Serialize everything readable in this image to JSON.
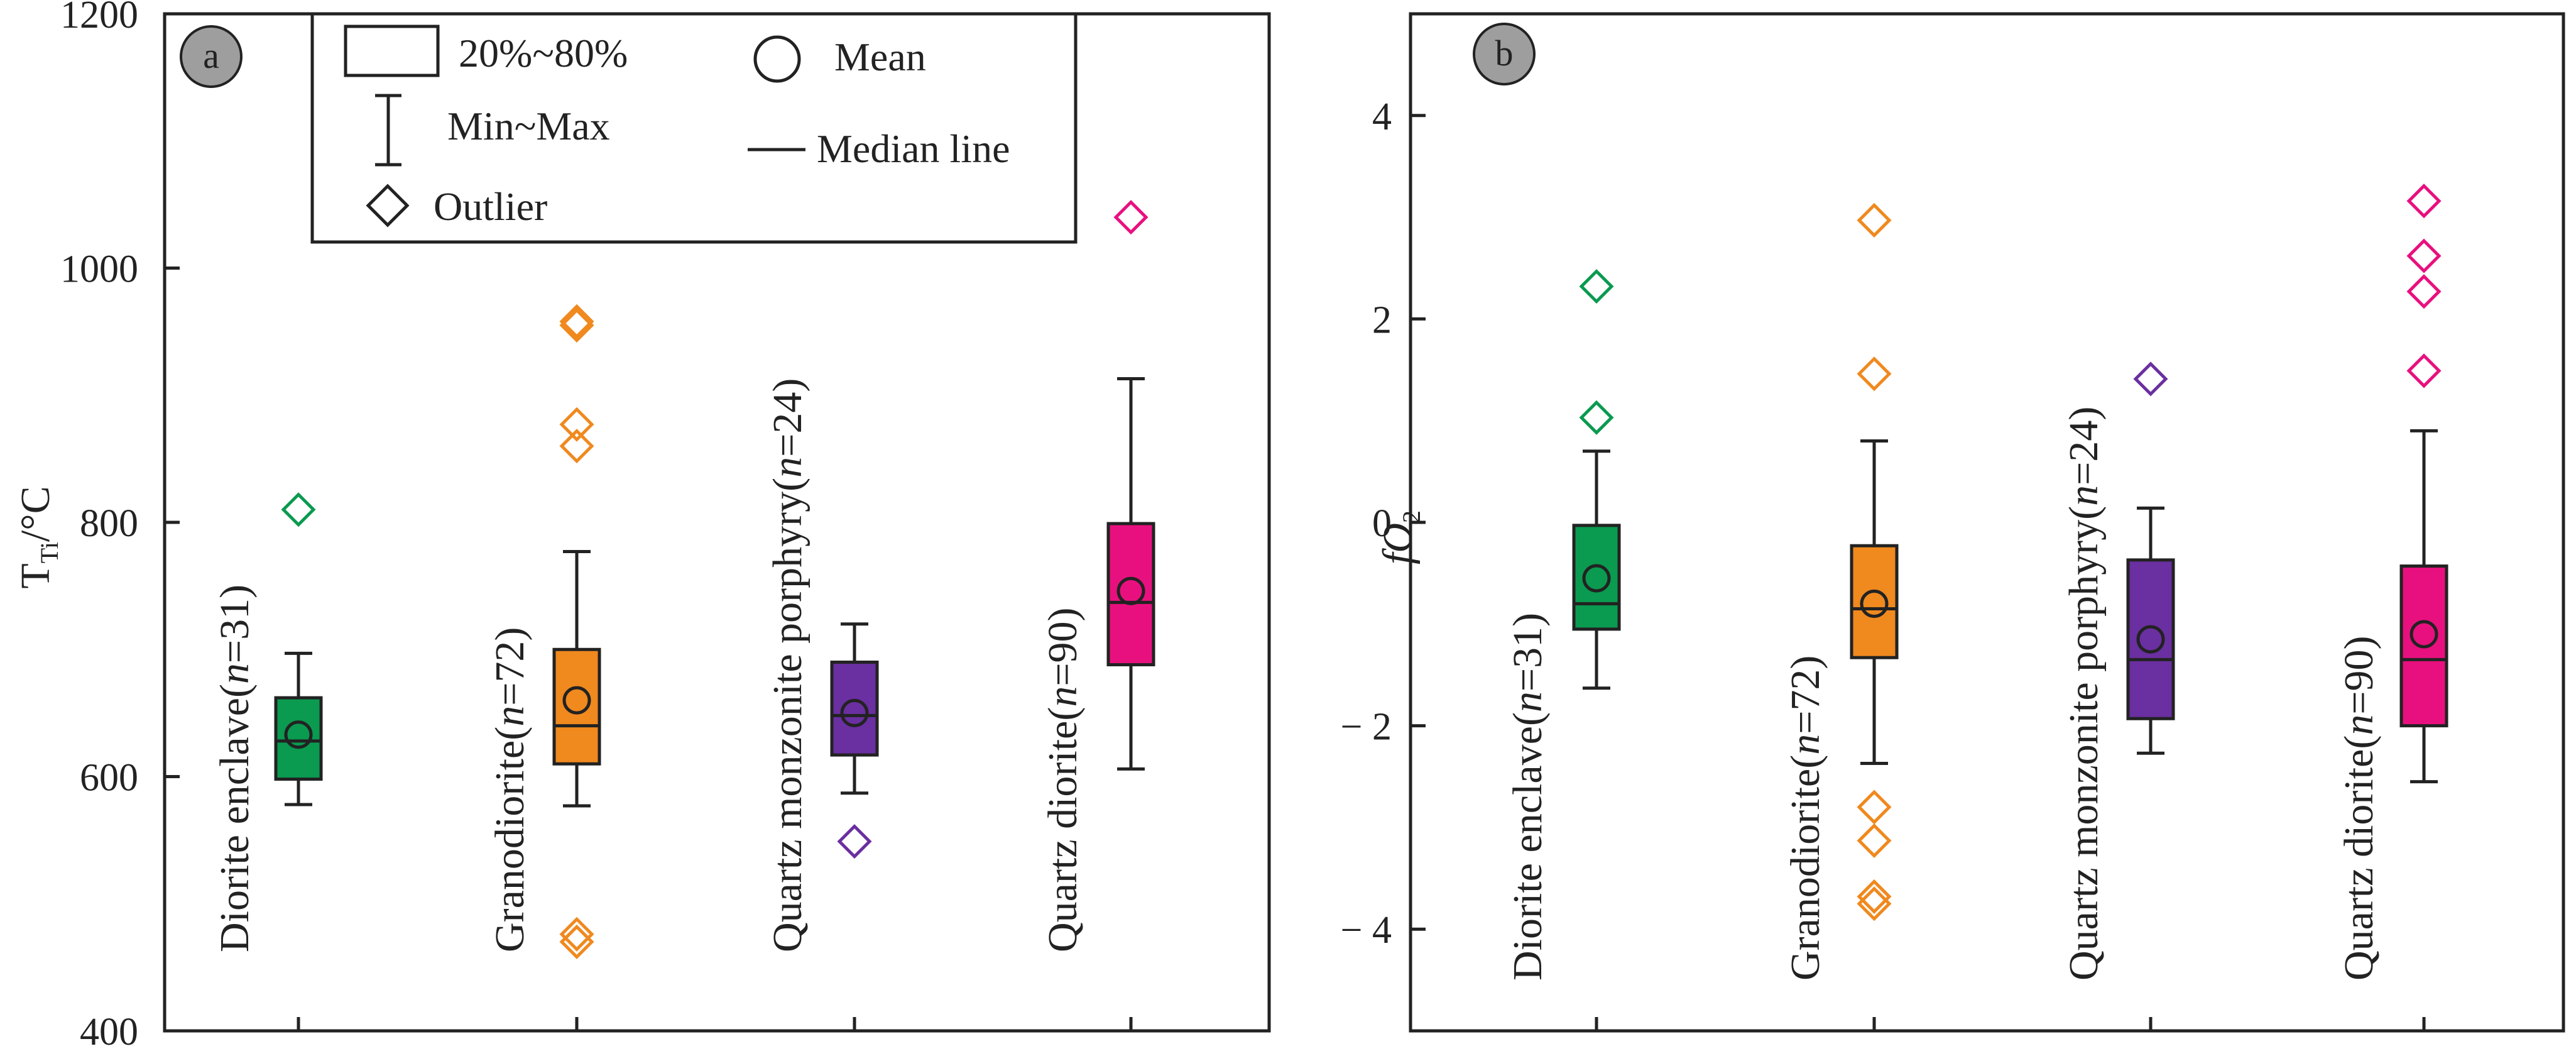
{
  "chart_data": [
    {
      "type": "box",
      "panel_label": "a",
      "ylabel_main": "T",
      "ylabel_sub": "Ti",
      "ylabel_rest": "/°C",
      "ylim": [
        400,
        1200
      ],
      "yticks": [
        400,
        600,
        800,
        1000,
        1200
      ],
      "categories": [
        {
          "pre": "Diorite enclave(",
          "n": "n",
          "post": "=31)"
        },
        {
          "pre": "Granodiorite(",
          "n": "n",
          "post": "=72)"
        },
        {
          "pre": "Quartz monzonite porphyry(",
          "n": "n",
          "post": "=24)"
        },
        {
          "pre": "Quartz diorite(",
          "n": "n",
          "post": "=90)"
        }
      ],
      "colors": [
        "#0a9a50",
        "#f0891e",
        "#6a2fa0",
        "#e8107e"
      ],
      "boxes": [
        {
          "min": 578,
          "q20": 598,
          "median": 628,
          "q80": 662,
          "max": 697,
          "mean": 633,
          "outliers": [
            810
          ]
        },
        {
          "min": 577,
          "q20": 610,
          "median": 640,
          "q80": 700,
          "max": 777,
          "mean": 660,
          "outliers": [
            958,
            955,
            877,
            860,
            476,
            470
          ]
        },
        {
          "min": 587,
          "q20": 617,
          "median": 648,
          "q80": 690,
          "max": 720,
          "mean": 650,
          "outliers": [
            549
          ]
        },
        {
          "min": 606,
          "q20": 688,
          "median": 737,
          "q80": 799,
          "max": 913,
          "mean": 746,
          "outliers": [
            1040
          ]
        }
      ],
      "legend": {
        "box_label": "20%~80%",
        "whisker_label": "Min~Max",
        "outlier_label": "Outlier",
        "mean_label": "Mean",
        "median_label": "Median line"
      }
    },
    {
      "type": "box",
      "panel_label": "b",
      "ylabel_main": "fO",
      "ylabel_sub": "2",
      "ylim": [
        -5,
        5
      ],
      "yticks": [
        -4,
        -2,
        0,
        2,
        4
      ],
      "ytick_labels": [
        "− 4",
        "− 2",
        "0",
        "2",
        "4"
      ],
      "categories": [
        {
          "pre": "Diorite enclave(",
          "n": "n",
          "post": "=31)"
        },
        {
          "pre": "Granodiorite(",
          "n": "n",
          "post": "=72)"
        },
        {
          "pre": "Quartz monzonite porphyry(",
          "n": "n",
          "post": "=24)"
        },
        {
          "pre": "Quartz diorite(",
          "n": "n",
          "post": "=90)"
        }
      ],
      "colors": [
        "#0a9a50",
        "#f0891e",
        "#6a2fa0",
        "#e8107e"
      ],
      "boxes": [
        {
          "min": -1.63,
          "q20": -1.05,
          "median": -0.8,
          "q80": -0.03,
          "max": 0.7,
          "mean": -0.55,
          "outliers": [
            2.32,
            1.03
          ]
        },
        {
          "min": -2.37,
          "q20": -1.33,
          "median": -0.85,
          "q80": -0.23,
          "max": 0.8,
          "mean": -0.8,
          "outliers": [
            2.97,
            1.46,
            -2.8,
            -3.13,
            -3.68,
            -3.75
          ]
        },
        {
          "min": -2.27,
          "q20": -1.93,
          "median": -1.35,
          "q80": -0.37,
          "max": 0.14,
          "mean": -1.15,
          "outliers": [
            1.41
          ]
        },
        {
          "min": -2.55,
          "q20": -2.0,
          "median": -1.35,
          "q80": -0.43,
          "max": 0.9,
          "mean": -1.1,
          "outliers": [
            3.16,
            2.62,
            2.27,
            1.49
          ]
        }
      ]
    }
  ]
}
